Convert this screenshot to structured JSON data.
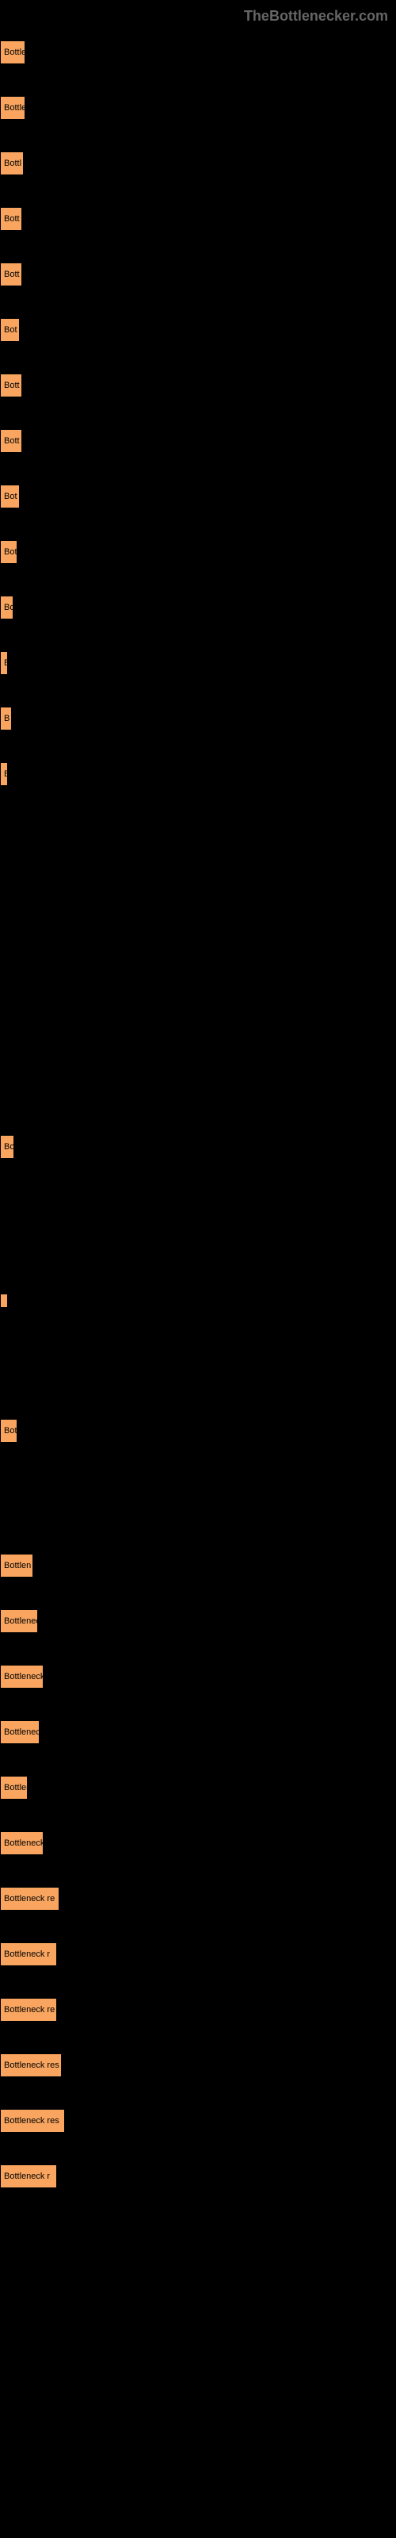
{
  "header": {
    "title": "TheBottlenecker.com"
  },
  "bars": [
    {
      "label": "Bottle",
      "width": 32
    },
    {
      "label": "Bottle",
      "width": 32
    },
    {
      "label": "Bottl",
      "width": 30
    },
    {
      "label": "Bott",
      "width": 28
    },
    {
      "label": "Bott",
      "width": 28
    },
    {
      "label": "Bot",
      "width": 25
    },
    {
      "label": "Bott",
      "width": 28
    },
    {
      "label": "Bott",
      "width": 28
    },
    {
      "label": "Bot",
      "width": 25
    },
    {
      "label": "Bot",
      "width": 22
    },
    {
      "label": "Bo",
      "width": 17
    },
    {
      "label": "B",
      "width": 10
    },
    {
      "label": "B",
      "width": 15
    },
    {
      "label": "B",
      "width": 8
    },
    {
      "label": "Bo",
      "width": 18
    },
    {
      "label": "",
      "width": 4
    },
    {
      "label": "Bot",
      "width": 22
    },
    {
      "label": "Bottlen",
      "width": 42
    },
    {
      "label": "Bottlenec",
      "width": 48
    },
    {
      "label": "Bottleneck",
      "width": 55
    },
    {
      "label": "Bottlenec",
      "width": 50
    },
    {
      "label": "Bottlen",
      "width": 35
    },
    {
      "label": "Bottleneck",
      "width": 55
    },
    {
      "label": "Bottleneck re",
      "width": 75
    },
    {
      "label": "Bottleneck r",
      "width": 72
    },
    {
      "label": "Bottleneck re",
      "width": 72
    },
    {
      "label": "Bottleneck res",
      "width": 78
    },
    {
      "label": "Bottleneck res",
      "width": 82
    },
    {
      "label": "Bottleneck r",
      "width": 72
    }
  ],
  "colors": {
    "background": "#000000",
    "bar_fill": "#f9a55f",
    "bar_border": "#000000",
    "header_text": "#666666",
    "bar_text": "#000000"
  }
}
